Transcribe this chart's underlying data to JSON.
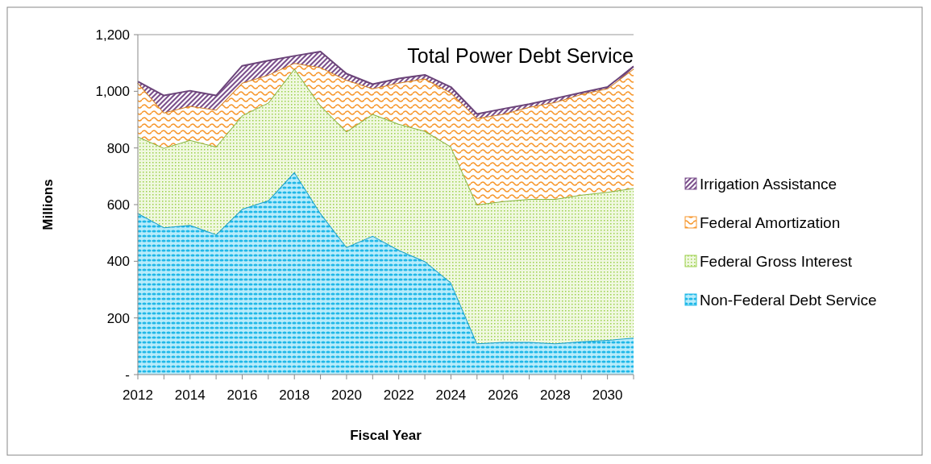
{
  "chart_data": {
    "type": "area",
    "stacked": true,
    "title": "Total Power Debt Service",
    "xlabel": "Fiscal Year",
    "ylabel": "Millions",
    "x": [
      2012,
      2013,
      2014,
      2015,
      2016,
      2017,
      2018,
      2019,
      2020,
      2021,
      2022,
      2023,
      2024,
      2025,
      2026,
      2027,
      2028,
      2029,
      2030,
      2031
    ],
    "xlim": [
      2012,
      2031
    ],
    "xticks": [
      2012,
      2014,
      2016,
      2018,
      2020,
      2022,
      2024,
      2026,
      2028,
      2030
    ],
    "ylim": [
      0,
      1200
    ],
    "yticks": [
      {
        "value": 0,
        "label": "-"
      },
      {
        "value": 200,
        "label": "200"
      },
      {
        "value": 400,
        "label": "400"
      },
      {
        "value": 600,
        "label": "600"
      },
      {
        "value": 800,
        "label": "800"
      },
      {
        "value": 1000,
        "label": "1,000"
      },
      {
        "value": 1200,
        "label": "1,200"
      }
    ],
    "grid": false,
    "legend": "right",
    "series": [
      {
        "name": "Non-Federal Debt Service",
        "color": "#1fb8e8",
        "values": [
          570,
          520,
          528,
          495,
          585,
          615,
          715,
          570,
          450,
          490,
          440,
          400,
          325,
          110,
          115,
          115,
          110,
          117,
          122,
          130
        ]
      },
      {
        "name": "Federal Gross Interest",
        "color": "#9bd04a",
        "values": [
          270,
          280,
          300,
          310,
          330,
          345,
          365,
          380,
          408,
          430,
          445,
          460,
          480,
          490,
          497,
          505,
          510,
          518,
          523,
          528
        ]
      },
      {
        "name": "Federal Amortization",
        "color": "#f7962a",
        "values": [
          190,
          125,
          120,
          130,
          115,
          98,
          20,
          135,
          182,
          90,
          145,
          185,
          190,
          305,
          308,
          325,
          342,
          355,
          365,
          422
        ]
      },
      {
        "name": "Irrigation Assistance",
        "color": "#7b4f8c",
        "values": [
          5,
          60,
          54,
          50,
          60,
          50,
          25,
          55,
          22,
          15,
          15,
          13,
          20,
          15,
          18,
          10,
          13,
          5,
          5,
          8
        ]
      }
    ]
  }
}
